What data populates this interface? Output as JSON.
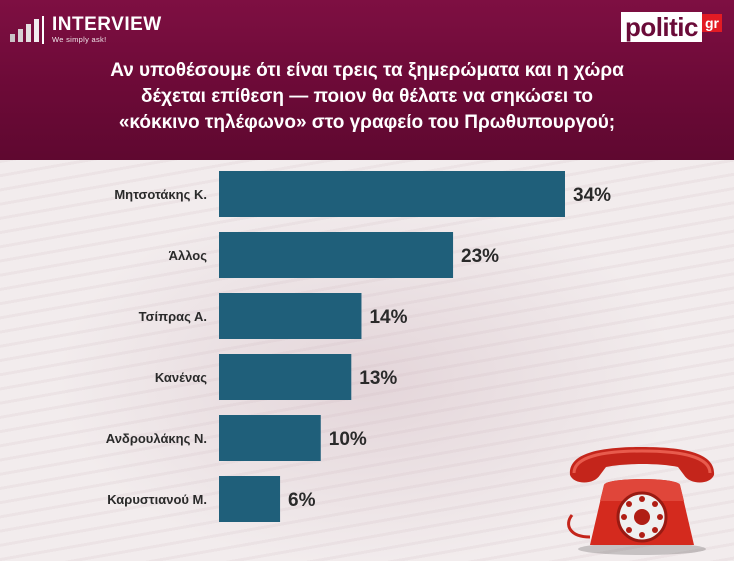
{
  "header": {
    "brand_name": "INTERVIEW",
    "brand_slogan": "We simply ask!",
    "logo_word": "politic",
    "logo_suffix": "gr",
    "question_lines": [
      "Αν υποθέσουμε ότι είναι τρεις τα ξημερώματα και η χώρα",
      "δέχεται επίθεση — ποιον θα θέλατε να σηκώσει το",
      "«κόκκινο τηλέφωνο» στο γραφείο του Πρωθυπουργού;"
    ]
  },
  "colors": {
    "header_bg": "#6c0a37",
    "bar": "#1f5f7a",
    "logo_red": "#e21b24",
    "phone_red": "#d42a1e"
  },
  "decor": {
    "phone_icon": "red-rotary-telephone"
  },
  "chart_data": {
    "type": "bar",
    "orientation": "horizontal",
    "categories": [
      "Μητσοτάκης Κ.",
      "Άλλος",
      "Τσίπρας Α.",
      "Κανένας",
      "Ανδρουλάκης Ν.",
      "Καρυστιανού Μ."
    ],
    "values": [
      34,
      23,
      14,
      13,
      10,
      6
    ],
    "value_labels": [
      "34%",
      "23%",
      "14%",
      "13%",
      "10%",
      "6%"
    ],
    "xlim": [
      0,
      34
    ],
    "grid": false,
    "legend": "none"
  }
}
